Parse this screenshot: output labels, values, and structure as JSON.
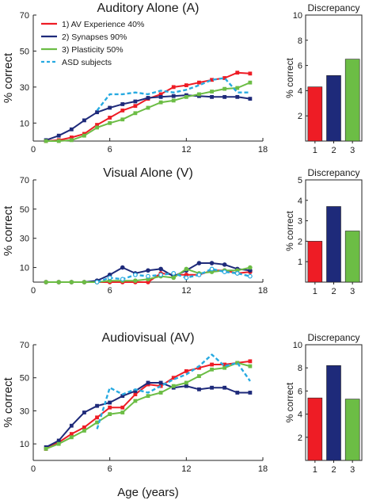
{
  "colors": {
    "av_experience": "#ee1c25",
    "synapses": "#1e2a7a",
    "plasticity": "#6cbd45",
    "asd": "#27aae1"
  },
  "chart_data": [
    {
      "type": "line",
      "title": "Auditory Alone (A)",
      "xlabel": "",
      "ylabel": "% correct",
      "xlim": [
        0,
        18
      ],
      "ylim": [
        0,
        70
      ],
      "x_ticks": [
        "0",
        "6",
        "12",
        "18"
      ],
      "y_ticks": [
        "10",
        "30",
        "50",
        "70"
      ],
      "legend_position": "top-left",
      "series": [
        {
          "name": "1) AV Experience 40%",
          "color": "#ee1c25",
          "style": "solid",
          "x": [
            1,
            2,
            3,
            4,
            5,
            6,
            7,
            8,
            9,
            10,
            11,
            12,
            13,
            14,
            15,
            16,
            17
          ],
          "y": [
            0,
            0.5,
            2,
            4,
            9,
            13,
            17,
            19.5,
            23.5,
            26,
            30,
            31,
            32.5,
            34,
            35,
            38,
            37.5
          ]
        },
        {
          "name": "2) Synapses 90%",
          "color": "#1e2a7a",
          "style": "solid",
          "x": [
            1,
            2,
            3,
            4,
            5,
            6,
            7,
            8,
            9,
            10,
            11,
            12,
            13,
            14,
            15,
            16,
            17
          ],
          "y": [
            0.5,
            3,
            6.5,
            11.5,
            16,
            18.5,
            20.5,
            22,
            24,
            24.5,
            25,
            25.5,
            25,
            24.5,
            24.5,
            24.5,
            23.5
          ]
        },
        {
          "name": "3) Plasticity 50%",
          "color": "#6cbd45",
          "style": "solid",
          "x": [
            1,
            2,
            3,
            4,
            5,
            6,
            7,
            8,
            9,
            10,
            11,
            12,
            13,
            14,
            15,
            16,
            17
          ],
          "y": [
            0,
            0,
            0.5,
            3,
            7.5,
            10,
            12,
            15.5,
            18.5,
            21.5,
            22.5,
            24.5,
            26,
            27.5,
            29,
            29.5,
            32.5
          ]
        },
        {
          "name": "ASD subjects",
          "color": "#27aae1",
          "style": "dashed",
          "x": [
            5,
            6,
            7,
            8,
            9,
            10,
            11,
            12,
            13,
            14,
            15,
            16,
            17
          ],
          "y": [
            17,
            26,
            26,
            27,
            26,
            28,
            27,
            28.5,
            31,
            34,
            35,
            27,
            27
          ]
        }
      ]
    },
    {
      "type": "bar",
      "title": "Discrepancy",
      "ylabel": "% correct",
      "categories": [
        "1",
        "2",
        "3"
      ],
      "values": [
        4.3,
        5.2,
        6.5
      ],
      "colors": [
        "#ee1c25",
        "#1e2a7a",
        "#6cbd45"
      ],
      "ylim": [
        0,
        10
      ],
      "y_ticks": [
        "2",
        "4",
        "6",
        "8",
        "10"
      ]
    },
    {
      "type": "line",
      "title": "Visual Alone (V)",
      "xlabel": "",
      "ylabel": "% correct",
      "xlim": [
        0,
        18
      ],
      "ylim": [
        0,
        70
      ],
      "x_ticks": [
        "0",
        "6",
        "12",
        "18"
      ],
      "y_ticks": [
        "10",
        "30",
        "50",
        "70"
      ],
      "series": [
        {
          "name": "1) AV Experience 40%",
          "color": "#ee1c25",
          "style": "solid",
          "x": [
            1,
            2,
            3,
            4,
            5,
            6,
            7,
            8,
            9,
            10,
            11,
            12,
            13,
            14,
            15,
            16,
            17
          ],
          "y": [
            0,
            0,
            0,
            0,
            0,
            0,
            0,
            0,
            0,
            6,
            5,
            5,
            5,
            8,
            8,
            6,
            7
          ]
        },
        {
          "name": "2) Synapses 90%",
          "color": "#1e2a7a",
          "style": "solid",
          "x": [
            1,
            2,
            3,
            4,
            5,
            6,
            7,
            8,
            9,
            10,
            11,
            12,
            13,
            14,
            15,
            16,
            17
          ],
          "y": [
            0,
            0,
            0,
            0,
            1,
            5,
            10,
            6,
            8,
            9,
            4,
            8,
            13,
            13,
            12,
            9,
            8
          ]
        },
        {
          "name": "3) Plasticity 50%",
          "color": "#6cbd45",
          "style": "solid",
          "x": [
            1,
            2,
            3,
            4,
            5,
            6,
            7,
            8,
            9,
            10,
            11,
            12,
            13,
            14,
            15,
            16,
            17
          ],
          "y": [
            0,
            0,
            0,
            0,
            0,
            1,
            1,
            1,
            2,
            4,
            3,
            9,
            6,
            7,
            8,
            8,
            10
          ]
        },
        {
          "name": "ASD subjects",
          "color": "#27aae1",
          "style": "dashed",
          "x": [
            5,
            6,
            7,
            8,
            9,
            10,
            11,
            12,
            13,
            14,
            15,
            16,
            17
          ],
          "y": [
            0,
            3,
            2,
            5,
            4,
            5,
            6,
            3,
            5,
            9,
            7,
            6,
            4
          ]
        }
      ]
    },
    {
      "type": "bar",
      "title": "Discrepancy",
      "ylabel": "% correct",
      "categories": [
        "1",
        "2",
        "3"
      ],
      "values": [
        2.0,
        3.7,
        2.5
      ],
      "colors": [
        "#ee1c25",
        "#1e2a7a",
        "#6cbd45"
      ],
      "ylim": [
        0,
        5
      ],
      "y_ticks": [
        "1",
        "2",
        "3",
        "4",
        "5"
      ]
    },
    {
      "type": "line",
      "title": "Audiovisual (AV)",
      "xlabel": "Age (years)",
      "ylabel": "% correct",
      "xlim": [
        0,
        18
      ],
      "ylim": [
        0,
        70
      ],
      "x_ticks": [
        "0",
        "6",
        "12",
        "18"
      ],
      "y_ticks": [
        "10",
        "30",
        "50",
        "70"
      ],
      "series": [
        {
          "name": "1) AV Experience 40%",
          "color": "#ee1c25",
          "style": "solid",
          "x": [
            1,
            2,
            3,
            4,
            5,
            6,
            7,
            8,
            9,
            10,
            11,
            12,
            13,
            14,
            15,
            16,
            17
          ],
          "y": [
            7,
            11,
            16,
            20,
            26,
            32,
            32,
            40,
            46,
            45,
            50,
            54,
            56,
            58,
            58,
            59,
            60
          ]
        },
        {
          "name": "2) Synapses 90%",
          "color": "#1e2a7a",
          "style": "solid",
          "x": [
            1,
            2,
            3,
            4,
            5,
            6,
            7,
            8,
            9,
            10,
            11,
            12,
            13,
            14,
            15,
            16,
            17
          ],
          "y": [
            8,
            12,
            21,
            29,
            33,
            35,
            39,
            42,
            47,
            47,
            44,
            45,
            43,
            44,
            44,
            41,
            41
          ]
        },
        {
          "name": "3) Plasticity 50%",
          "color": "#6cbd45",
          "style": "solid",
          "x": [
            1,
            2,
            3,
            4,
            5,
            6,
            7,
            8,
            9,
            10,
            11,
            12,
            13,
            14,
            15,
            16,
            17
          ],
          "y": [
            7,
            10,
            14,
            18,
            23,
            28,
            29,
            36,
            39,
            41,
            45,
            47,
            51,
            55,
            56,
            59,
            57
          ]
        },
        {
          "name": "ASD subjects",
          "color": "#27aae1",
          "style": "dashed",
          "x": [
            5,
            6,
            7,
            8,
            9,
            10,
            11,
            12,
            13,
            14,
            15,
            16,
            17
          ],
          "y": [
            19,
            44,
            40,
            43,
            41,
            45,
            49,
            52,
            57,
            64,
            57,
            59,
            48
          ]
        }
      ]
    },
    {
      "type": "bar",
      "title": "Discrepancy",
      "ylabel": "% correct",
      "categories": [
        "1",
        "2",
        "3"
      ],
      "values": [
        5.4,
        8.2,
        5.3
      ],
      "colors": [
        "#ee1c25",
        "#1e2a7a",
        "#6cbd45"
      ],
      "ylim": [
        0,
        10
      ],
      "y_ticks": [
        "2",
        "4",
        "6",
        "8",
        "10"
      ]
    }
  ]
}
